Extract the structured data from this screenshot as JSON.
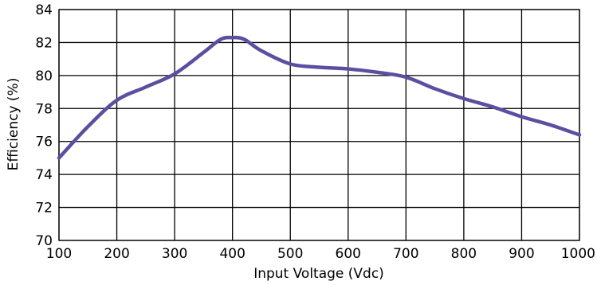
{
  "chart_data": {
    "type": "line",
    "title": "",
    "xlabel": "Input Voltage (Vdc)",
    "ylabel": "Efficiency (%)",
    "xlim": [
      100,
      1000
    ],
    "ylim": [
      70,
      84
    ],
    "xticks": [
      100,
      200,
      300,
      400,
      500,
      600,
      700,
      800,
      900,
      1000
    ],
    "yticks": [
      70,
      72,
      74,
      76,
      78,
      80,
      82,
      84
    ],
    "grid": true,
    "legend": "none",
    "colors": {
      "line": "#5a4fa0",
      "grid": "#000000",
      "background": "#ffffff"
    },
    "series": [
      {
        "x": [
          100,
          150,
          200,
          250,
          300,
          350,
          380,
          400,
          420,
          450,
          500,
          550,
          600,
          650,
          700,
          750,
          800,
          850,
          900,
          950,
          1000
        ],
        "y": [
          75.0,
          76.9,
          78.5,
          79.3,
          80.1,
          81.4,
          82.2,
          82.3,
          82.2,
          81.5,
          80.7,
          80.5,
          80.4,
          80.2,
          79.9,
          79.2,
          78.6,
          78.1,
          77.5,
          77.0,
          76.4
        ]
      }
    ]
  }
}
